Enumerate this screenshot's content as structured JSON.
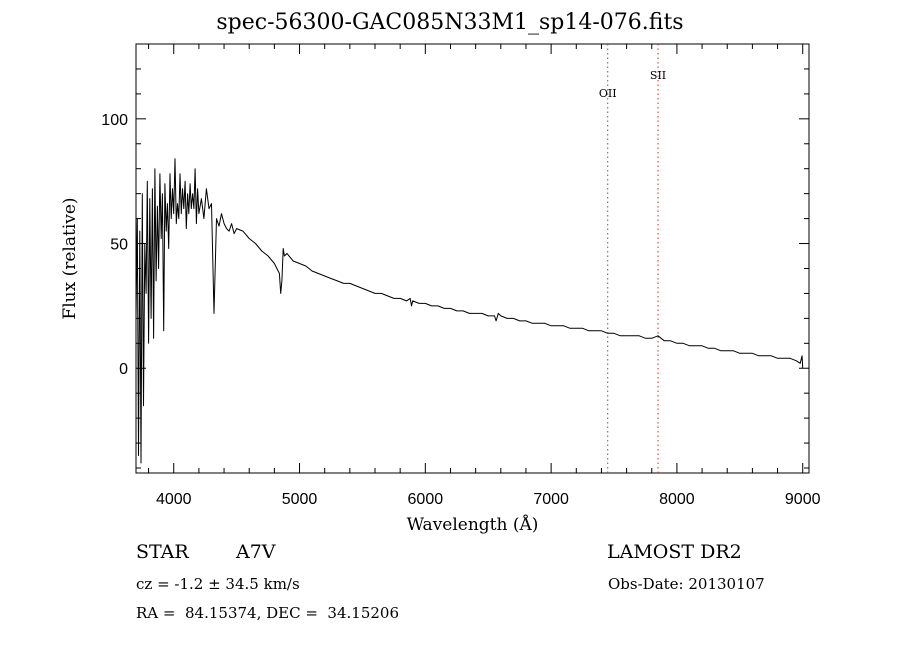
{
  "chart_data": {
    "type": "line",
    "title": "spec-56300-GAC085N33M1_sp14-076.fits",
    "xlabel": "Wavelength (Å)",
    "ylabel": "Flux (relative)",
    "xlim": [
      3700,
      9050
    ],
    "ylim": [
      -42,
      130
    ],
    "x_ticks": [
      4000,
      5000,
      6000,
      7000,
      8000,
      9000
    ],
    "y_ticks": [
      0,
      50,
      100
    ],
    "grid": false,
    "series": [
      {
        "color": "#000000",
        "x": [
          3700,
          3710,
          3720,
          3730,
          3740,
          3750,
          3760,
          3770,
          3780,
          3790,
          3800,
          3810,
          3820,
          3830,
          3840,
          3850,
          3860,
          3870,
          3880,
          3890,
          3900,
          3910,
          3920,
          3930,
          3940,
          3950,
          3960,
          3970,
          3980,
          3990,
          4000,
          4010,
          4020,
          4030,
          4040,
          4050,
          4060,
          4070,
          4080,
          4090,
          4100,
          4110,
          4120,
          4130,
          4140,
          4150,
          4160,
          4170,
          4180,
          4190,
          4200,
          4220,
          4240,
          4260,
          4280,
          4300,
          4320,
          4340,
          4360,
          4380,
          4400,
          4420,
          4440,
          4460,
          4480,
          4500,
          4550,
          4600,
          4650,
          4700,
          4750,
          4800,
          4840,
          4850,
          4860,
          4870,
          4880,
          4900,
          4950,
          5000,
          5050,
          5100,
          5150,
          5200,
          5250,
          5300,
          5350,
          5400,
          5450,
          5500,
          5550,
          5600,
          5650,
          5700,
          5750,
          5800,
          5850,
          5880,
          5890,
          5900,
          5950,
          6000,
          6050,
          6100,
          6150,
          6200,
          6250,
          6300,
          6350,
          6400,
          6450,
          6500,
          6550,
          6563,
          6580,
          6600,
          6650,
          6700,
          6750,
          6800,
          6850,
          6900,
          6950,
          7000,
          7050,
          7100,
          7150,
          7200,
          7250,
          7300,
          7350,
          7400,
          7450,
          7500,
          7550,
          7600,
          7650,
          7700,
          7750,
          7800,
          7850,
          7900,
          7950,
          8000,
          8050,
          8100,
          8150,
          8200,
          8250,
          8300,
          8350,
          8400,
          8450,
          8500,
          8550,
          8600,
          8650,
          8700,
          8750,
          8800,
          8850,
          8900,
          8950,
          8980,
          8995,
          9000
        ],
        "y": [
          20,
          60,
          -35,
          55,
          -38,
          70,
          -15,
          50,
          30,
          75,
          10,
          68,
          20,
          72,
          12,
          80,
          35,
          65,
          40,
          78,
          52,
          70,
          15,
          74,
          55,
          66,
          48,
          78,
          60,
          72,
          62,
          84,
          58,
          66,
          60,
          78,
          62,
          72,
          64,
          75,
          56,
          70,
          62,
          74,
          64,
          70,
          64,
          80,
          58,
          72,
          62,
          68,
          60,
          72,
          64,
          66,
          22,
          60,
          57,
          62,
          58,
          56,
          55,
          58,
          54,
          56,
          55,
          52,
          50,
          47,
          45,
          42,
          38,
          30,
          35,
          48,
          45,
          46,
          43,
          42,
          41,
          39,
          38,
          37,
          36,
          35,
          34,
          34,
          33,
          32,
          31,
          30,
          30,
          29,
          28,
          28,
          27,
          28,
          25,
          27,
          26,
          26,
          25,
          25,
          24,
          24,
          23,
          23,
          22,
          22,
          22,
          21,
          21,
          19,
          22,
          21,
          20,
          20,
          19,
          19,
          18,
          18,
          18,
          17,
          17,
          17,
          16,
          16,
          16,
          15,
          15,
          15,
          14,
          14,
          13,
          13,
          13,
          13,
          12,
          12,
          13,
          11,
          11,
          10,
          10,
          9,
          9,
          9,
          8,
          8,
          7,
          7,
          7,
          6,
          6,
          6,
          5,
          5,
          5,
          4,
          4,
          4,
          3,
          2,
          5,
          0
        ]
      }
    ],
    "annotations": [
      {
        "label": "OII",
        "x": 7450,
        "color": "#c0392b"
      },
      {
        "label": "SII",
        "x": 7850,
        "color": "#c0392b"
      }
    ]
  },
  "info": {
    "object_class": "STAR",
    "subclass": "A7V",
    "survey": "LAMOST DR2",
    "cz": "cz = -1.2 ± 34.5 km/s",
    "obs_date": "Obs-Date: 20130107",
    "coords": "RA =  84.15374, DEC =  34.15206"
  }
}
